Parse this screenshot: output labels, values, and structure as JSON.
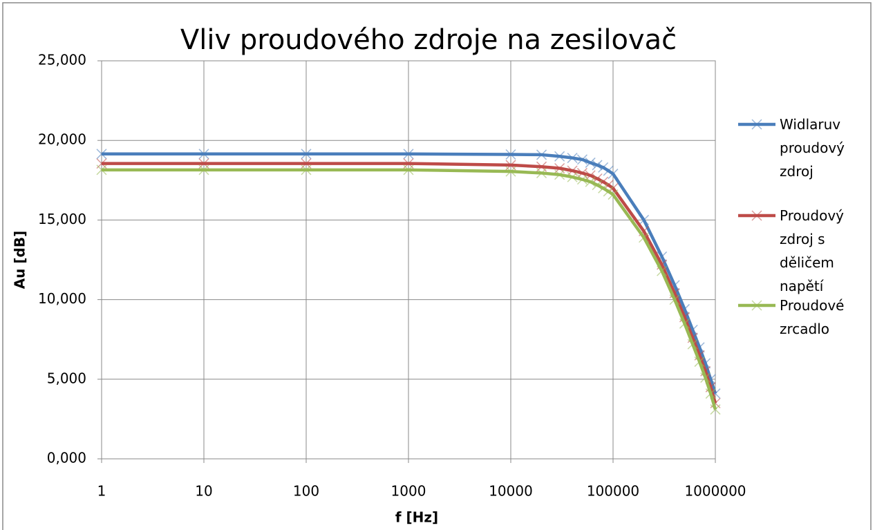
{
  "chart_data": {
    "type": "line",
    "title": "Vliv proudového zdroje na zesilovač",
    "x_label": "f [Hz]",
    "y_label": "Au [dB]",
    "x_scale": "log",
    "grid": true,
    "legend": "right",
    "x": [
      1,
      10,
      100,
      1000,
      10000,
      20000,
      30000,
      40000,
      50000,
      60000,
      70000,
      80000,
      90000,
      100000,
      200000,
      300000,
      400000,
      500000,
      600000,
      700000,
      800000,
      900000,
      1000000
    ],
    "series": [
      {
        "name": "Widlaruv proudový zdroj",
        "color": "#4a7ebb",
        "values": [
          19.15,
          19.15,
          19.15,
          19.15,
          19.12,
          19.1,
          19.0,
          18.9,
          18.8,
          18.6,
          18.45,
          18.3,
          18.1,
          17.9,
          15.0,
          12.7,
          10.9,
          9.4,
          8.1,
          7.0,
          6.0,
          5.0,
          4.1
        ]
      },
      {
        "name": "Proudový zdroj s děličem napětí",
        "color": "#be4b48",
        "values": [
          18.55,
          18.55,
          18.55,
          18.55,
          18.45,
          18.35,
          18.25,
          18.1,
          17.95,
          17.8,
          17.6,
          17.4,
          17.2,
          17.0,
          14.3,
          12.2,
          10.4,
          8.9,
          7.6,
          6.5,
          5.5,
          4.5,
          3.5
        ]
      },
      {
        "name": "Proudové zrcadlo",
        "color": "#98b954",
        "values": [
          18.15,
          18.15,
          18.15,
          18.15,
          18.05,
          17.95,
          17.85,
          17.7,
          17.55,
          17.4,
          17.2,
          17.0,
          16.8,
          16.6,
          13.9,
          11.8,
          10.0,
          8.5,
          7.2,
          6.1,
          5.1,
          4.1,
          3.1
        ]
      }
    ],
    "xlim": [
      1,
      1000000
    ],
    "xticks": [
      1,
      10,
      100,
      1000,
      10000,
      100000,
      1000000
    ],
    "ylim": [
      0,
      25
    ],
    "yticks": [
      {
        "value": 0,
        "label": "0,000"
      },
      {
        "value": 5,
        "label": "5,000"
      },
      {
        "value": 10,
        "label": "10,000"
      },
      {
        "value": 15,
        "label": "15,000"
      },
      {
        "value": 20,
        "label": "20,000"
      },
      {
        "value": 25,
        "label": "25,000"
      }
    ]
  }
}
